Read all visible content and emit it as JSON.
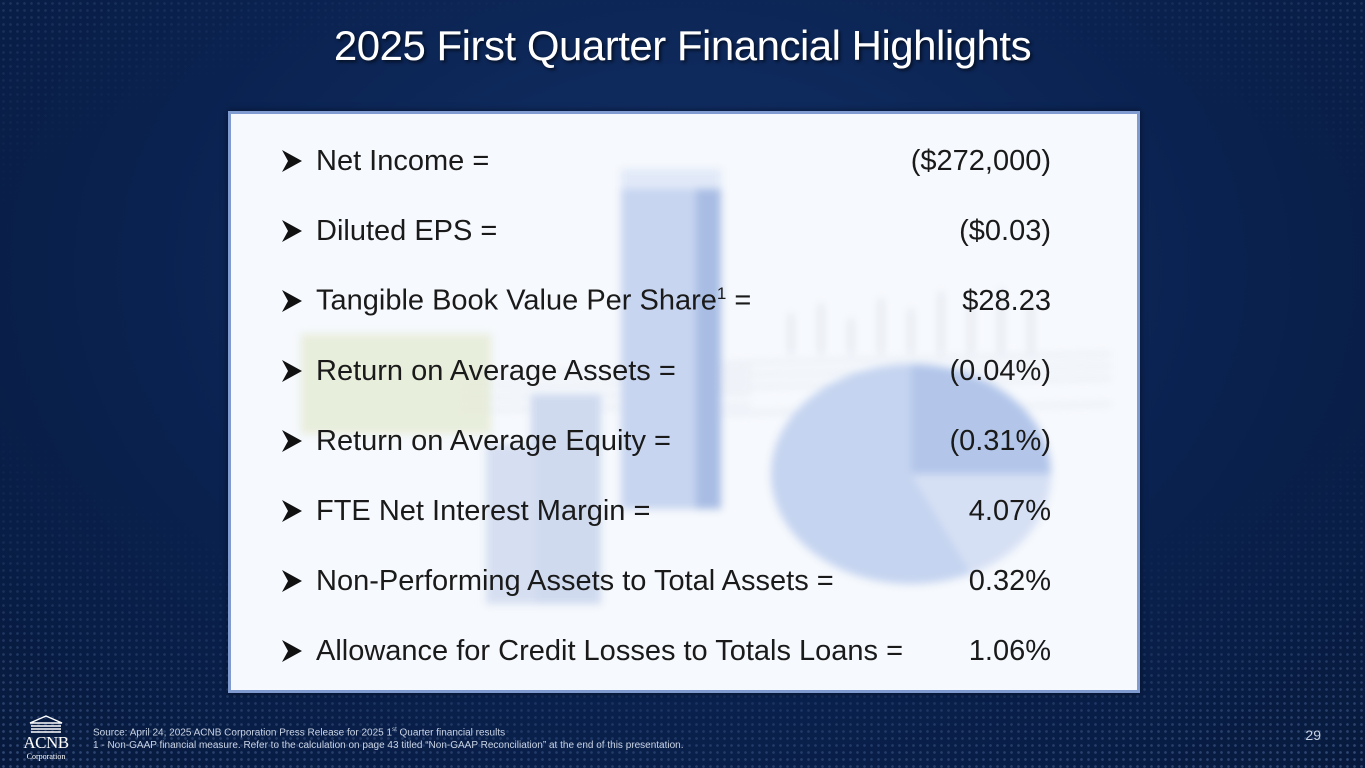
{
  "title": "2025 First Quarter Financial Highlights",
  "highlights": [
    {
      "label": "Net Income =",
      "value": "($272,000)"
    },
    {
      "label": "Diluted EPS =",
      "value": "($0.03)"
    },
    {
      "label": "Tangible Book Value Per Share",
      "sup": "1",
      "label_suffix": " =",
      "value": "$28.23"
    },
    {
      "label": "Return on Average Assets =",
      "value": "(0.04%)"
    },
    {
      "label": "Return on Average Equity =",
      "value": "(0.31%)"
    },
    {
      "label": "FTE Net Interest Margin =",
      "value": "4.07%"
    },
    {
      "label": "Non-Performing Assets to Total Assets =",
      "value": "0.32%"
    },
    {
      "label": "Allowance for Credit Losses to Totals Loans =",
      "value": "1.06%"
    }
  ],
  "footer": {
    "source_prefix": "Source:  April 24, 2025 ACNB Corporation Press Release for 2025 1",
    "source_sup": "st",
    "source_suffix": " Quarter financial results",
    "note": "1 - Non-GAAP financial measure. Refer to the calculation on page 43 titled “Non-GAAP Reconciliation” at the end of this presentation."
  },
  "page_number": "29",
  "logo": {
    "name": "ACNB",
    "sub": "Corporation"
  },
  "colors": {
    "background": "#0b2350",
    "panel_border": "#7f9bcf",
    "text": "#1a1a1a"
  }
}
